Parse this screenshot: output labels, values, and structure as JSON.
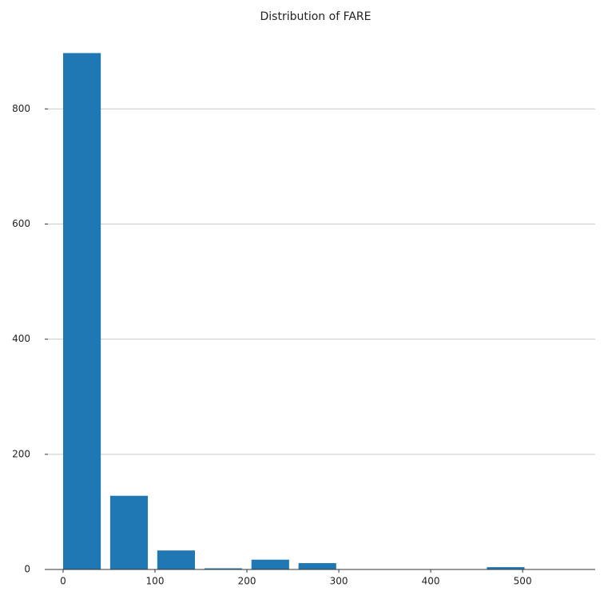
{
  "chart_data": {
    "type": "histogram",
    "title": "Distribution of FARE",
    "bins": [
      0,
      51.23292,
      102.46584,
      153.69876,
      204.93168,
      256.1646,
      307.39752,
      358.63044,
      409.86336,
      461.09628,
      512.3292
    ],
    "values": [
      897,
      128,
      33,
      2,
      17,
      11,
      0,
      0,
      0,
      4
    ],
    "color": "#1f77b4",
    "xlim": [
      -16.5,
      579
    ],
    "xticks": [
      0,
      100,
      200,
      300,
      400,
      500
    ],
    "ylim": [
      0,
      942
    ],
    "yticks": [
      0,
      200,
      400,
      600,
      800
    ],
    "grid": true
  }
}
